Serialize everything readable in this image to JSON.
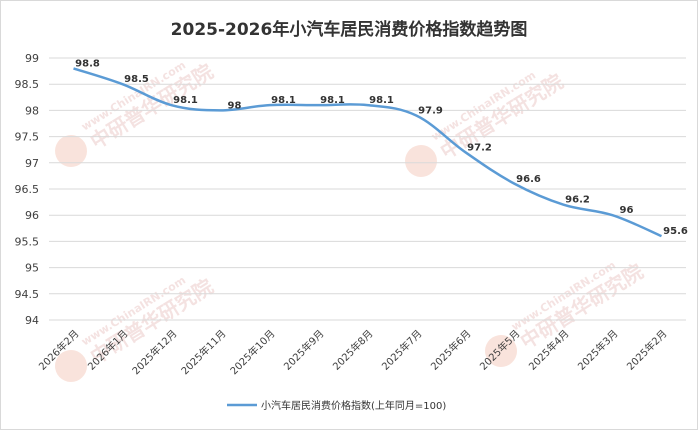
{
  "chart_data": {
    "type": "line",
    "title": "2025-2026年小汽车居民消费价格指数趋势图",
    "categories": [
      "2026年2月",
      "2026年1月",
      "2025年12月",
      "2025年11月",
      "2025年10月",
      "2025年9月",
      "2025年8月",
      "2025年7月",
      "2025年6月",
      "2025年5月",
      "2025年4月",
      "2025年3月",
      "2025年2月"
    ],
    "series": [
      {
        "name": "小汽车居民消费价格指数(上年同月=100)",
        "values": [
          98.8,
          98.5,
          98.1,
          98,
          98.1,
          98.1,
          98.1,
          97.9,
          97.2,
          96.6,
          96.2,
          96,
          95.6
        ],
        "color": "#5b9bd5"
      }
    ],
    "data_labels": [
      "98.8",
      "98.5",
      "98.1",
      "98",
      "98.1",
      "98.1",
      "98.1",
      "97.9",
      "97.2",
      "96.6",
      "96.2",
      "96",
      "95.6"
    ],
    "yticks": [
      "99",
      "98.5",
      "98",
      "97.5",
      "97",
      "96.5",
      "96",
      "95.5",
      "95",
      "94.5",
      "94"
    ],
    "ylim": [
      94,
      99
    ],
    "grid": true,
    "legend_position": "bottom",
    "xlabel": "",
    "ylabel": ""
  },
  "watermark": {
    "text": "www.ChinaIRN.com",
    "brand": "中研普华研究院",
    "logo": "CIRN"
  }
}
